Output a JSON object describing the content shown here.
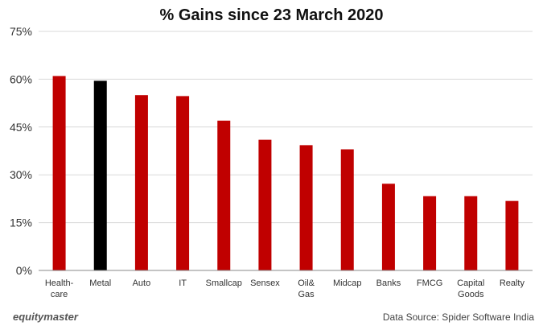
{
  "chart_data": {
    "type": "bar",
    "title": "% Gains since 23 March 2020",
    "categories": [
      [
        "Health-",
        "care"
      ],
      [
        "Metal"
      ],
      [
        "Auto"
      ],
      [
        "IT"
      ],
      [
        "Smallcap"
      ],
      [
        "Sensex"
      ],
      [
        "Oil&",
        "Gas"
      ],
      [
        "Midcap"
      ],
      [
        "Banks"
      ],
      [
        "FMCG"
      ],
      [
        "Capital",
        "Goods"
      ],
      [
        "Realty"
      ]
    ],
    "values": [
      61,
      59.5,
      55,
      54.7,
      47,
      41,
      39.3,
      38,
      27.2,
      23.3,
      23.3,
      21.8
    ],
    "highlight_index": 1,
    "ylim": [
      0,
      75
    ],
    "yticks": [
      "0%",
      "15%",
      "30%",
      "45%",
      "60%",
      "75%"
    ],
    "grid": true,
    "colors": {
      "bar": "#c00000",
      "highlight": "#000000",
      "grid": "#d9d9d9",
      "axis": "#888888"
    }
  },
  "footer": {
    "brand": "equitymaster",
    "source": "Data Source: Spider Software India"
  }
}
